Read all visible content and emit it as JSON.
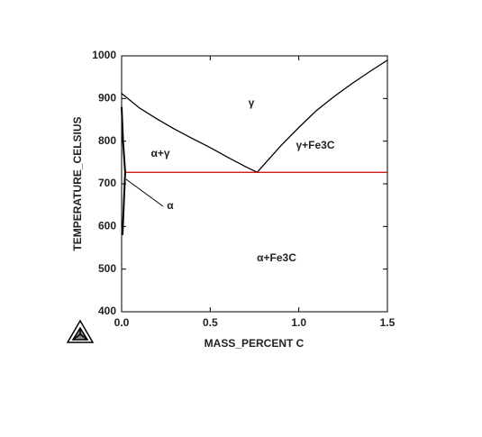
{
  "chart_data": {
    "type": "line",
    "xlabel": "MASS_PERCENT C",
    "ylabel": "TEMPERATURE_CELSIUS",
    "xlim": [
      0,
      1.5
    ],
    "ylim": [
      400,
      1000
    ],
    "xticks": [
      {
        "value": 0,
        "label": "0.0"
      },
      0.5,
      {
        "value": 1,
        "label": "1.0"
      },
      1.5
    ],
    "yticks": [
      400,
      500,
      600,
      700,
      800,
      900,
      1000
    ],
    "series": [
      {
        "color": "#000000",
        "x": [
          0,
          0.1,
          0.2,
          0.3,
          0.4,
          0.5,
          0.6,
          0.7,
          0.765
        ],
        "values": [
          912,
          878,
          852,
          828,
          806,
          785,
          762,
          740,
          727
        ]
      },
      {
        "color": "#000000",
        "x": [
          0.765,
          0.9,
          1.0,
          1.1,
          1.2,
          1.3,
          1.4,
          1.5
        ],
        "values": [
          727,
          790,
          832,
          872,
          905,
          935,
          963,
          990
        ]
      },
      {
        "color": "#cc0000",
        "x": [
          0.02,
          1.5
        ],
        "values": [
          727,
          727
        ]
      },
      {
        "color": "#000000",
        "x": [
          0.0,
          0.008,
          0.02,
          0.012,
          0.005
        ],
        "values": [
          880,
          800,
          727,
          650,
          580
        ]
      }
    ],
    "annotations": [
      "γ",
      "α+γ",
      "γ+Fe3C",
      "α",
      "α+Fe3C"
    ]
  }
}
